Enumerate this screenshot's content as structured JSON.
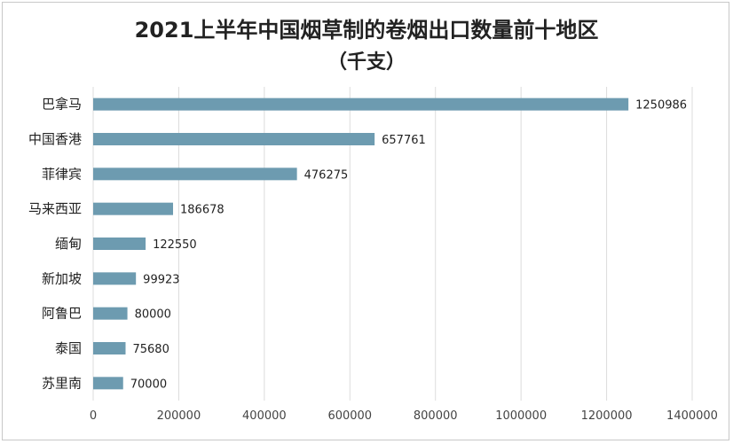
{
  "chart_data": {
    "type": "bar",
    "orientation": "horizontal",
    "title": "2021上半年中国烟草制的卷烟出口数量前十地区",
    "subtitle": "（千支）",
    "categories": [
      "巴拿马",
      "中国香港",
      "菲律宾",
      "马来西亚",
      "缅甸",
      "新加坡",
      "阿鲁巴",
      "泰国",
      "苏里南"
    ],
    "values": [
      1250986,
      657761,
      476275,
      186678,
      122550,
      99923,
      80000,
      75680,
      70000
    ],
    "value_labels": [
      "1250986",
      "657761",
      "476275",
      "186678",
      "122550",
      "99923",
      "80000",
      "75680",
      "70000"
    ],
    "xlim": [
      0,
      1400000
    ],
    "xticks": [
      0,
      200000,
      400000,
      600000,
      800000,
      1000000,
      1200000,
      1400000
    ],
    "xtick_labels": [
      "0",
      "200000",
      "400000",
      "600000",
      "800000",
      "1000000",
      "1200000",
      "1400000"
    ],
    "grid": true,
    "legend": "none",
    "bar_color": "#6d9bb0",
    "grid_color": "#dcdcdc"
  }
}
